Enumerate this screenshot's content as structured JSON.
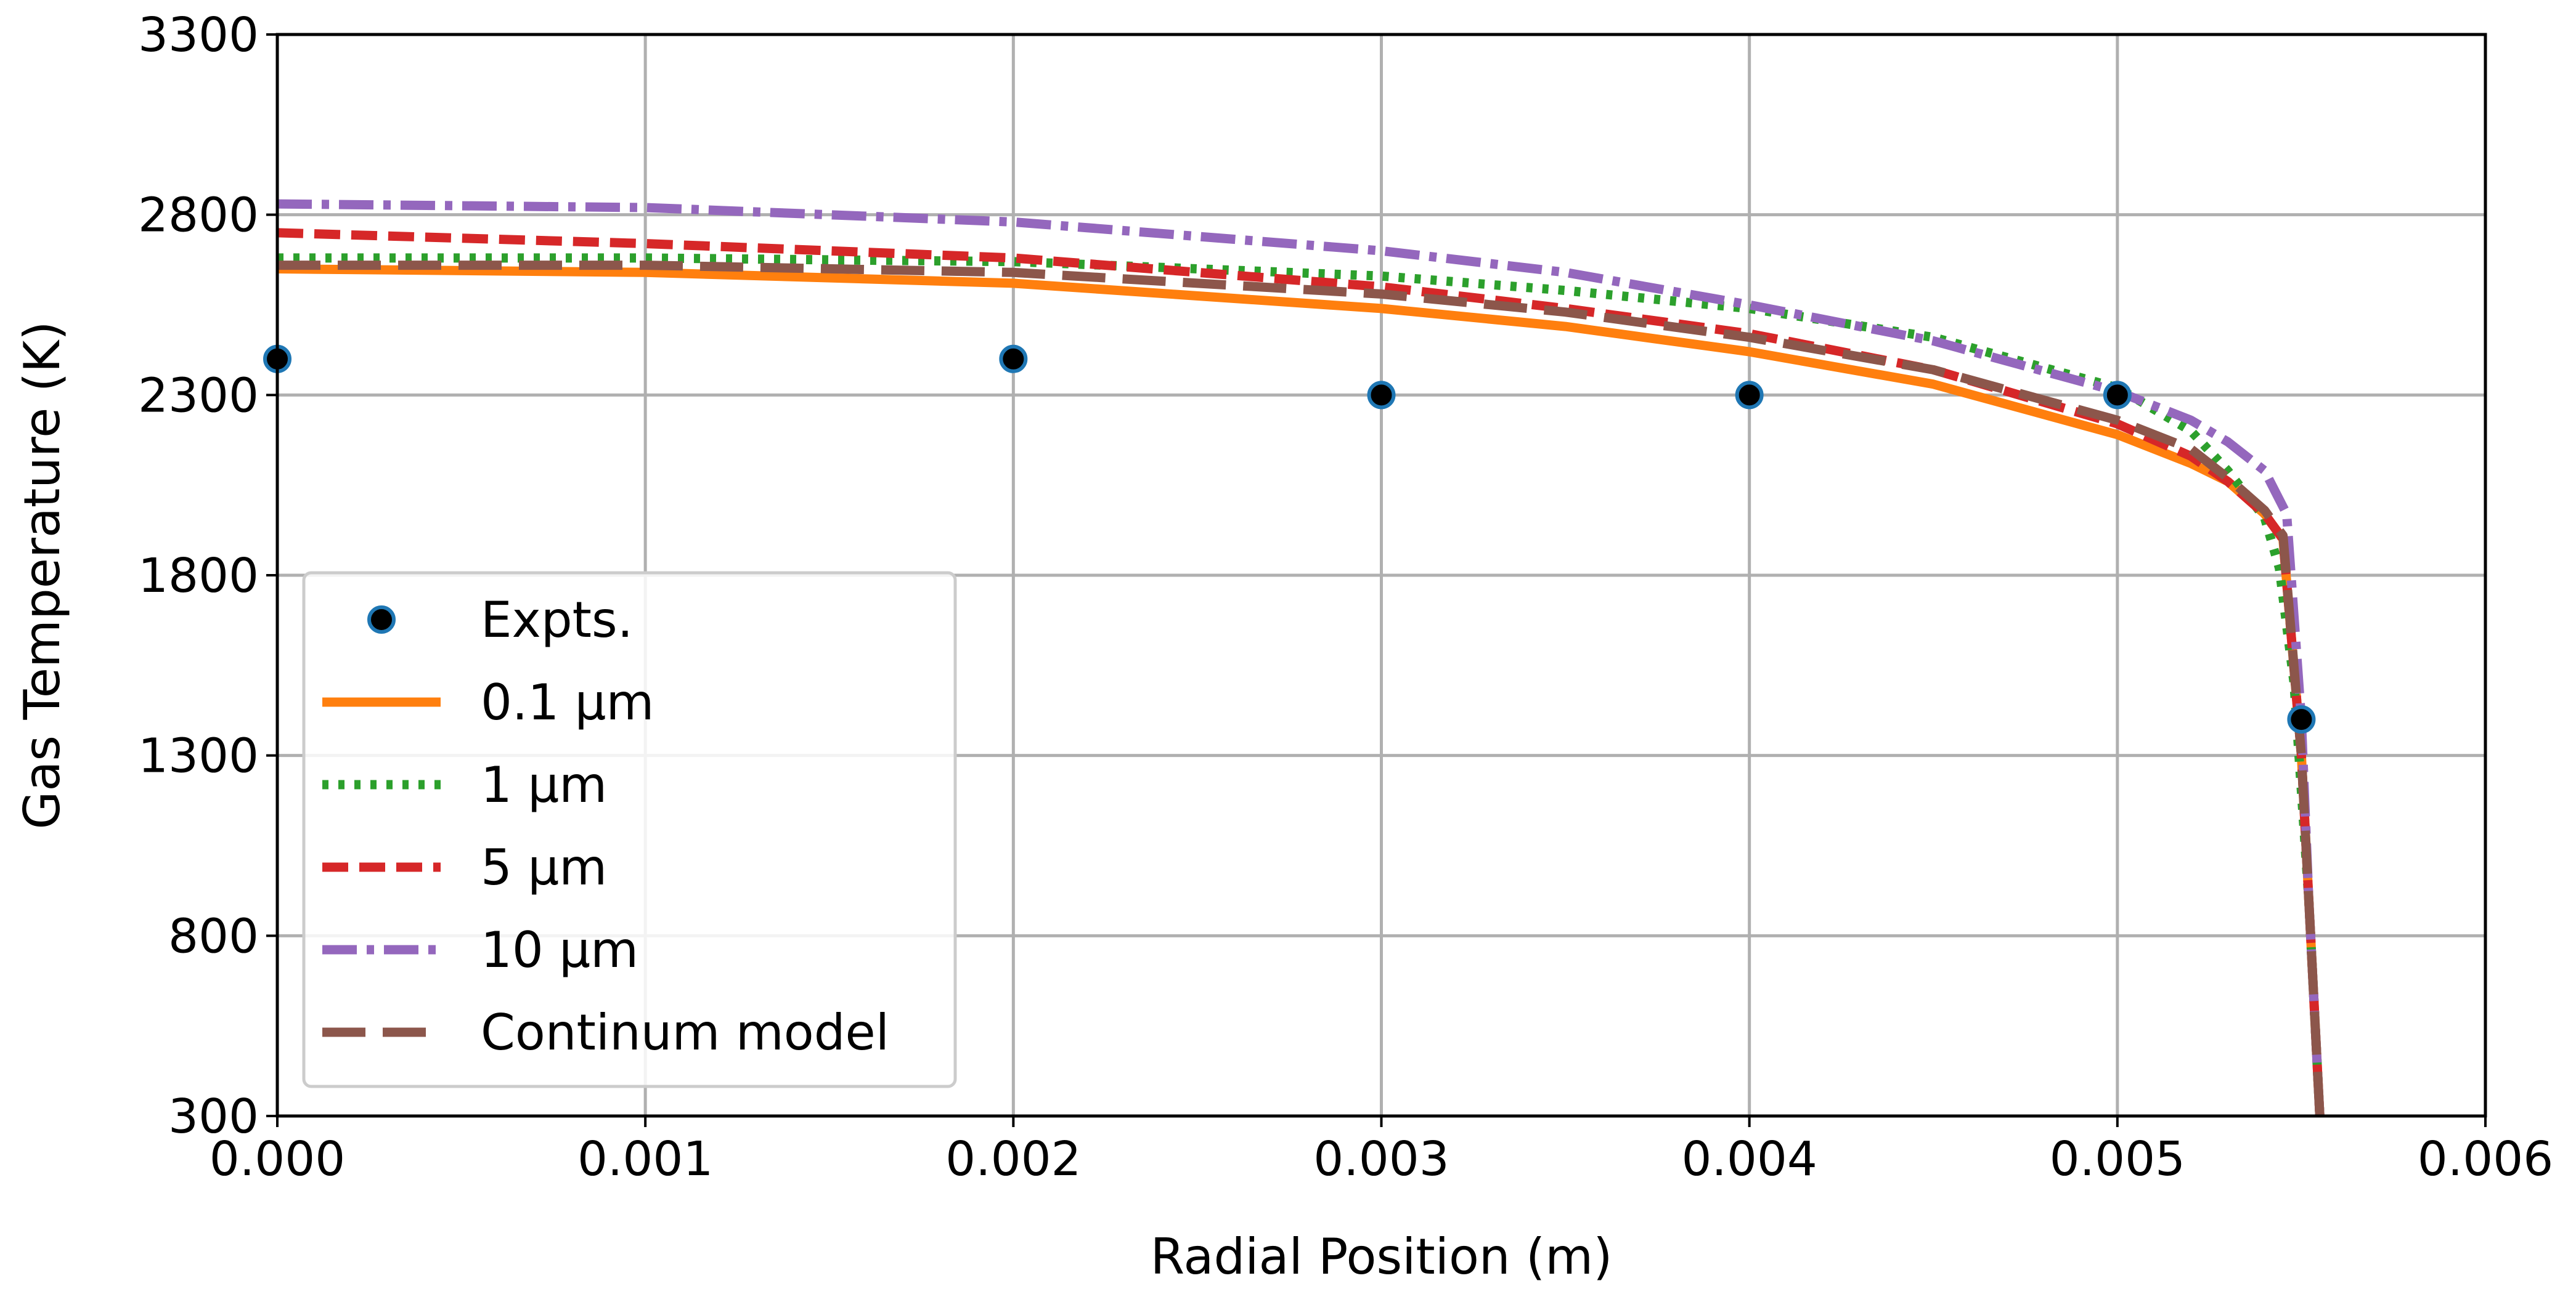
{
  "chart_data": {
    "type": "line",
    "xlabel": "Radial Position (m)",
    "ylabel": "Gas Temperature (K)",
    "xlim": [
      0,
      0.006
    ],
    "ylim": [
      300,
      3300
    ],
    "xticks": [
      "0.000",
      "0.001",
      "0.002",
      "0.003",
      "0.004",
      "0.005",
      "0.006"
    ],
    "yticks": [
      "300",
      "800",
      "1300",
      "1800",
      "2300",
      "2800",
      "3300"
    ],
    "grid": true,
    "legend_position": "bottom-left",
    "experiments": {
      "name": "Expts.",
      "color": "#000000",
      "edge_color": "#1f77b4",
      "x": [
        0.0,
        0.002,
        0.003,
        0.004,
        0.005,
        0.0055
      ],
      "y": [
        2400,
        2400,
        2300,
        2300,
        2300,
        1400
      ]
    },
    "series": [
      {
        "name": "0.1 µm",
        "color": "#ff7f0e",
        "style": "solid",
        "x": [
          0,
          0.001,
          0.002,
          0.003,
          0.0035,
          0.004,
          0.0045,
          0.005,
          0.0052,
          0.0053,
          0.0054,
          0.00545,
          0.0055,
          0.00552,
          0.00554,
          0.00555
        ],
        "y": [
          2650,
          2640,
          2610,
          2540,
          2490,
          2420,
          2330,
          2190,
          2110,
          2060,
          1970,
          1900,
          1300,
          900,
          500,
          300
        ]
      },
      {
        "name": "1 µm",
        "color": "#2ca02c",
        "style": "dotted",
        "x": [
          0,
          0.001,
          0.002,
          0.003,
          0.0035,
          0.004,
          0.0045,
          0.005,
          0.0052,
          0.0053,
          0.0054,
          0.00544,
          0.00548,
          0.00552,
          0.00554,
          0.00555
        ],
        "y": [
          2680,
          2680,
          2670,
          2630,
          2590,
          2540,
          2460,
          2320,
          2200,
          2090,
          1960,
          1820,
          1500,
          900,
          500,
          300
        ]
      },
      {
        "name": "5 µm",
        "color": "#d62728",
        "style": "dashed",
        "x": [
          0,
          0.001,
          0.002,
          0.003,
          0.0035,
          0.004,
          0.0045,
          0.005,
          0.0052,
          0.0053,
          0.0054,
          0.00545,
          0.0055,
          0.00552,
          0.00554,
          0.00555
        ],
        "y": [
          2750,
          2720,
          2680,
          2600,
          2540,
          2470,
          2370,
          2220,
          2130,
          2060,
          1970,
          1900,
          1300,
          900,
          500,
          300
        ]
      },
      {
        "name": "10 µm",
        "color": "#9467bd",
        "style": "dashdot",
        "x": [
          0,
          0.001,
          0.002,
          0.003,
          0.0035,
          0.004,
          0.0045,
          0.005,
          0.0052,
          0.0053,
          0.0054,
          0.00546,
          0.0055,
          0.00552,
          0.00554,
          0.00555
        ],
        "y": [
          2830,
          2820,
          2780,
          2700,
          2640,
          2550,
          2450,
          2310,
          2230,
          2170,
          2090,
          1970,
          1400,
          900,
          500,
          300
        ]
      },
      {
        "name": "Continum model",
        "color": "#8c564b",
        "style": "longdash",
        "x": [
          0,
          0.001,
          0.002,
          0.003,
          0.0035,
          0.004,
          0.0045,
          0.005,
          0.0052,
          0.0053,
          0.0054,
          0.00545,
          0.0055,
          0.00552,
          0.00554,
          0.00555
        ],
        "y": [
          2660,
          2660,
          2640,
          2580,
          2530,
          2460,
          2370,
          2230,
          2150,
          2070,
          1980,
          1910,
          1300,
          900,
          500,
          300
        ]
      }
    ]
  }
}
